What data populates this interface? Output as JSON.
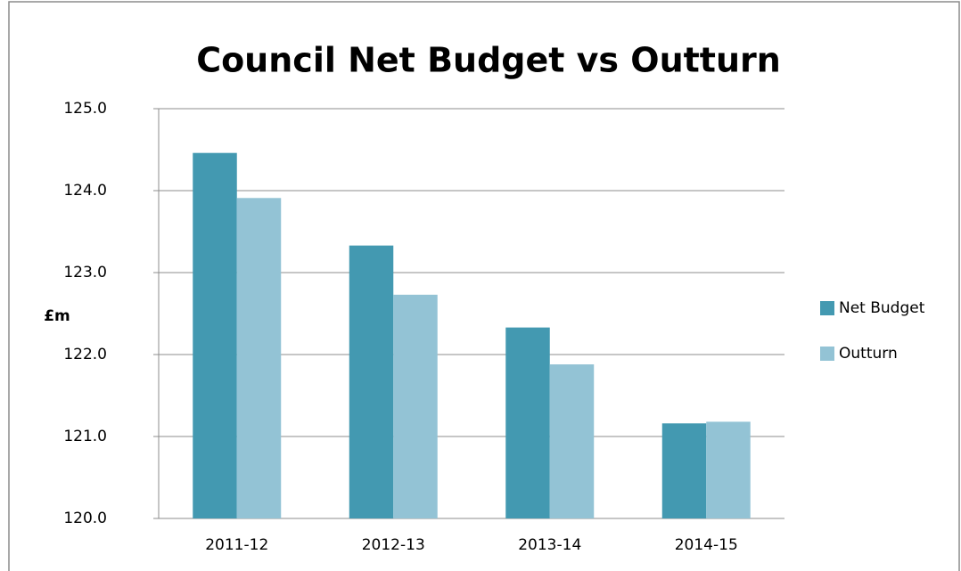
{
  "chart_data": {
    "type": "bar",
    "title": "Council Net Budget vs Outturn",
    "y_label": "£m",
    "categories": [
      "2011-12",
      "2012-13",
      "2013-14",
      "2014-15"
    ],
    "series": [
      {
        "name": "Net Budget",
        "color": "#4399b1",
        "values": [
          124.46,
          123.33,
          122.33,
          121.16
        ]
      },
      {
        "name": "Outturn",
        "color": "#93c3d5",
        "values": [
          123.91,
          122.73,
          121.88,
          121.18
        ]
      }
    ],
    "ylim": [
      120,
      125
    ],
    "yticks": [
      {
        "value": 120,
        "label": "120.0"
      },
      {
        "value": 121,
        "label": "121.0"
      },
      {
        "value": 122,
        "label": "122.0"
      },
      {
        "value": 123,
        "label": "123.0"
      },
      {
        "value": 124,
        "label": "124.0"
      },
      {
        "value": 125,
        "label": "125.0"
      }
    ],
    "grid": true,
    "legend": "right"
  }
}
